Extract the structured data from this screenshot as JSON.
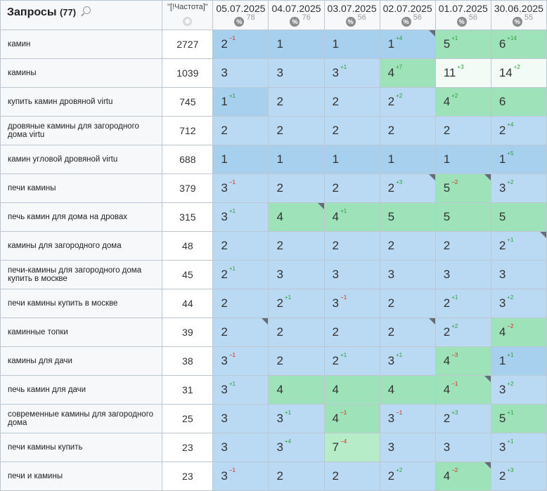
{
  "header": {
    "title": "Запросы",
    "count": "(77)",
    "freq_label": "\"[!Частота]\"",
    "globe_icon": "globe-icon",
    "dates": [
      {
        "date": "05.07.2025",
        "val": "78"
      },
      {
        "date": "04.07.2025",
        "val": "76"
      },
      {
        "date": "03.07.2025",
        "val": "56"
      },
      {
        "date": "02.07.2025",
        "val": "56"
      },
      {
        "date": "01.07.2025",
        "val": "56"
      },
      {
        "date": "30.06.2025",
        "val": "55"
      }
    ]
  },
  "colors": {
    "blue": "#b9daf2",
    "dark_blue": "#a7cfee",
    "green": "#9ee2ba",
    "light_green": "#b6ecc7",
    "white": "#f3fbf6",
    "up": "#2a9d3b",
    "down": "#e0221b"
  },
  "rows": [
    {
      "q": "камин",
      "f": "2727",
      "cells": [
        {
          "v": "2",
          "d": "1",
          "dir": "down",
          "c": "dblue"
        },
        {
          "v": "1",
          "c": "dblue"
        },
        {
          "v": "1",
          "c": "dblue"
        },
        {
          "v": "1",
          "d": "4",
          "dir": "up",
          "c": "dblue",
          "m": true
        },
        {
          "v": "5",
          "d": "1",
          "dir": "up",
          "c": "green"
        },
        {
          "v": "6",
          "d": "14",
          "dir": "up",
          "c": "green"
        }
      ]
    },
    {
      "q": "камины",
      "f": "1039",
      "cells": [
        {
          "v": "3",
          "c": "blue"
        },
        {
          "v": "3",
          "c": "blue"
        },
        {
          "v": "3",
          "d": "1",
          "dir": "up",
          "c": "blue"
        },
        {
          "v": "4",
          "d": "7",
          "dir": "up",
          "c": "green"
        },
        {
          "v": "11",
          "d": "3",
          "dir": "up",
          "c": "white"
        },
        {
          "v": "14",
          "d": "2",
          "dir": "up",
          "c": "white"
        }
      ]
    },
    {
      "q": "купить камин дровяной virtu",
      "f": "745",
      "cells": [
        {
          "v": "1",
          "d": "1",
          "dir": "up",
          "c": "dblue"
        },
        {
          "v": "2",
          "c": "blue"
        },
        {
          "v": "2",
          "c": "blue"
        },
        {
          "v": "2",
          "d": "2",
          "dir": "up",
          "c": "blue"
        },
        {
          "v": "4",
          "d": "2",
          "dir": "up",
          "c": "green"
        },
        {
          "v": "6",
          "c": "green"
        }
      ]
    },
    {
      "q": "дровяные камины для загородного дома virtu",
      "f": "712",
      "cells": [
        {
          "v": "2",
          "c": "blue"
        },
        {
          "v": "2",
          "c": "blue"
        },
        {
          "v": "2",
          "c": "blue"
        },
        {
          "v": "2",
          "c": "blue"
        },
        {
          "v": "2",
          "c": "blue"
        },
        {
          "v": "2",
          "d": "4",
          "dir": "up",
          "c": "blue"
        }
      ]
    },
    {
      "q": "камин угловой дровяной virtu",
      "f": "688",
      "cells": [
        {
          "v": "1",
          "c": "dblue"
        },
        {
          "v": "1",
          "c": "dblue"
        },
        {
          "v": "1",
          "c": "dblue"
        },
        {
          "v": "1",
          "c": "dblue"
        },
        {
          "v": "1",
          "c": "dblue"
        },
        {
          "v": "1",
          "d": "5",
          "dir": "up",
          "c": "dblue"
        }
      ]
    },
    {
      "q": "печи камины",
      "f": "379",
      "cells": [
        {
          "v": "3",
          "d": "1",
          "dir": "down",
          "c": "blue"
        },
        {
          "v": "2",
          "c": "blue"
        },
        {
          "v": "2",
          "c": "blue"
        },
        {
          "v": "2",
          "d": "3",
          "dir": "up",
          "c": "blue",
          "m": true
        },
        {
          "v": "5",
          "d": "2",
          "dir": "down",
          "c": "green",
          "m": true
        },
        {
          "v": "3",
          "d": "2",
          "dir": "up",
          "c": "blue"
        }
      ]
    },
    {
      "q": "печь камин для дома на дровах",
      "f": "315",
      "cells": [
        {
          "v": "3",
          "d": "1",
          "dir": "up",
          "c": "blue"
        },
        {
          "v": "4",
          "c": "green",
          "m": true
        },
        {
          "v": "4",
          "d": "1",
          "dir": "up",
          "c": "green"
        },
        {
          "v": "5",
          "c": "green"
        },
        {
          "v": "5",
          "c": "green"
        },
        {
          "v": "5",
          "c": "green"
        }
      ]
    },
    {
      "q": "камины для загородного дома",
      "f": "48",
      "cells": [
        {
          "v": "2",
          "c": "blue"
        },
        {
          "v": "2",
          "c": "blue"
        },
        {
          "v": "2",
          "c": "blue"
        },
        {
          "v": "2",
          "c": "blue"
        },
        {
          "v": "2",
          "c": "blue"
        },
        {
          "v": "2",
          "d": "1",
          "dir": "up",
          "c": "blue",
          "m": true
        }
      ]
    },
    {
      "q": "печи-камины для загородного дома купить в москве",
      "f": "45",
      "cells": [
        {
          "v": "2",
          "d": "1",
          "dir": "up",
          "c": "blue"
        },
        {
          "v": "3",
          "c": "blue"
        },
        {
          "v": "3",
          "c": "blue"
        },
        {
          "v": "3",
          "c": "blue"
        },
        {
          "v": "3",
          "c": "blue"
        },
        {
          "v": "3",
          "c": "blue"
        }
      ]
    },
    {
      "q": "печи камины купить в москве",
      "f": "44",
      "cells": [
        {
          "v": "2",
          "c": "blue"
        },
        {
          "v": "2",
          "d": "1",
          "dir": "up",
          "c": "blue"
        },
        {
          "v": "3",
          "d": "1",
          "dir": "down",
          "c": "blue"
        },
        {
          "v": "2",
          "c": "blue"
        },
        {
          "v": "2",
          "d": "1",
          "dir": "up",
          "c": "blue"
        },
        {
          "v": "3",
          "d": "2",
          "dir": "up",
          "c": "blue"
        }
      ]
    },
    {
      "q": "каминные топки",
      "f": "39",
      "cells": [
        {
          "v": "2",
          "c": "blue",
          "m": true
        },
        {
          "v": "2",
          "c": "blue"
        },
        {
          "v": "2",
          "c": "blue"
        },
        {
          "v": "2",
          "c": "blue",
          "m": true
        },
        {
          "v": "2",
          "d": "2",
          "dir": "up",
          "c": "blue"
        },
        {
          "v": "4",
          "d": "2",
          "dir": "down",
          "c": "green"
        }
      ]
    },
    {
      "q": "камины для дачи",
      "f": "38",
      "cells": [
        {
          "v": "3",
          "d": "1",
          "dir": "down",
          "c": "blue"
        },
        {
          "v": "2",
          "c": "blue"
        },
        {
          "v": "2",
          "d": "1",
          "dir": "up",
          "c": "blue"
        },
        {
          "v": "3",
          "d": "1",
          "dir": "up",
          "c": "blue"
        },
        {
          "v": "4",
          "d": "3",
          "dir": "down",
          "c": "green"
        },
        {
          "v": "1",
          "d": "1",
          "dir": "up",
          "c": "dblue"
        }
      ]
    },
    {
      "q": "печь камин для дачи",
      "f": "31",
      "cells": [
        {
          "v": "3",
          "d": "1",
          "dir": "up",
          "c": "blue"
        },
        {
          "v": "4",
          "c": "green"
        },
        {
          "v": "4",
          "c": "green"
        },
        {
          "v": "4",
          "c": "green"
        },
        {
          "v": "4",
          "d": "1",
          "dir": "down",
          "c": "green",
          "m": true
        },
        {
          "v": "3",
          "d": "2",
          "dir": "up",
          "c": "blue"
        }
      ]
    },
    {
      "q": "современные камины для загородного дома",
      "f": "25",
      "cells": [
        {
          "v": "3",
          "c": "blue"
        },
        {
          "v": "3",
          "d": "1",
          "dir": "up",
          "c": "blue"
        },
        {
          "v": "4",
          "d": "1",
          "dir": "down",
          "c": "green"
        },
        {
          "v": "3",
          "d": "1",
          "dir": "down",
          "c": "blue"
        },
        {
          "v": "2",
          "d": "3",
          "dir": "up",
          "c": "blue"
        },
        {
          "v": "5",
          "d": "1",
          "dir": "up",
          "c": "green"
        }
      ]
    },
    {
      "q": "печи камины купить",
      "f": "23",
      "cells": [
        {
          "v": "3",
          "c": "blue"
        },
        {
          "v": "3",
          "d": "4",
          "dir": "up",
          "c": "blue"
        },
        {
          "v": "7",
          "d": "4",
          "dir": "down",
          "c": "lgreen"
        },
        {
          "v": "3",
          "c": "blue"
        },
        {
          "v": "3",
          "c": "blue"
        },
        {
          "v": "3",
          "d": "1",
          "dir": "up",
          "c": "blue"
        }
      ]
    },
    {
      "q": "печи и камины",
      "f": "23",
      "cells": [
        {
          "v": "3",
          "d": "1",
          "dir": "down",
          "c": "blue"
        },
        {
          "v": "2",
          "c": "blue"
        },
        {
          "v": "2",
          "c": "blue"
        },
        {
          "v": "2",
          "d": "2",
          "dir": "up",
          "c": "blue"
        },
        {
          "v": "4",
          "d": "2",
          "dir": "down",
          "c": "green",
          "m": true
        },
        {
          "v": "2",
          "d": "3",
          "dir": "up",
          "c": "blue"
        }
      ]
    }
  ]
}
